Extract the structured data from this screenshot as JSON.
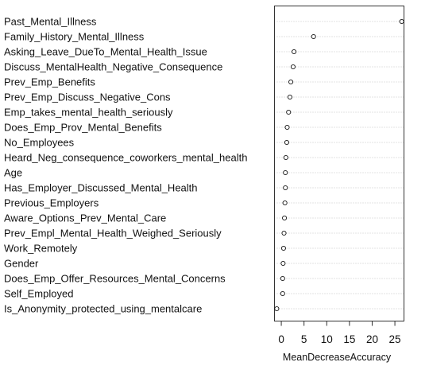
{
  "chart_data": {
    "type": "scatter",
    "title": "",
    "xlabel": "MeanDecreaseAccuracy",
    "ylabel": "",
    "xlim": [
      -1.5,
      27
    ],
    "xticks": [
      0,
      5,
      10,
      15,
      20,
      25
    ],
    "xtick_labels": [
      "0",
      "5",
      "10",
      "15",
      "20",
      "25"
    ],
    "grid": "dotted horizontal guide lines",
    "marker": "open circle",
    "categories": [
      "Past_Mental_Illness",
      "Family_History_Mental_Illness",
      "Asking_Leave_DueTo_Mental_Health_Issue",
      "Discuss_MentalHealth_Negative_Consequence",
      "Prev_Emp_Benefits",
      "Prev_Emp_Discuss_Negative_Cons",
      "Emp_takes_mental_health_seriously",
      "Does_Emp_Prov_Mental_Benefits",
      "No_Employees",
      "Heard_Neg_consequence_coworkers_mental_health",
      "Age",
      "Has_Employer_Discussed_Mental_Health",
      "Previous_Employers",
      "Aware_Options_Prev_Mental_Care",
      "Prev_Empl_Mental_Health_Weighed_Seriously",
      "Work_Remotely",
      "Gender",
      "Does_Emp_Offer_Resources_Mental_Concerns",
      "Self_Employed",
      "Is_Anonymity_protected_using_mentalcare"
    ],
    "values": [
      26.5,
      7.1,
      2.8,
      2.6,
      2.1,
      1.9,
      1.6,
      1.3,
      1.2,
      1.0,
      0.9,
      0.9,
      0.8,
      0.7,
      0.6,
      0.5,
      0.4,
      0.3,
      0.3,
      -1.0
    ]
  }
}
